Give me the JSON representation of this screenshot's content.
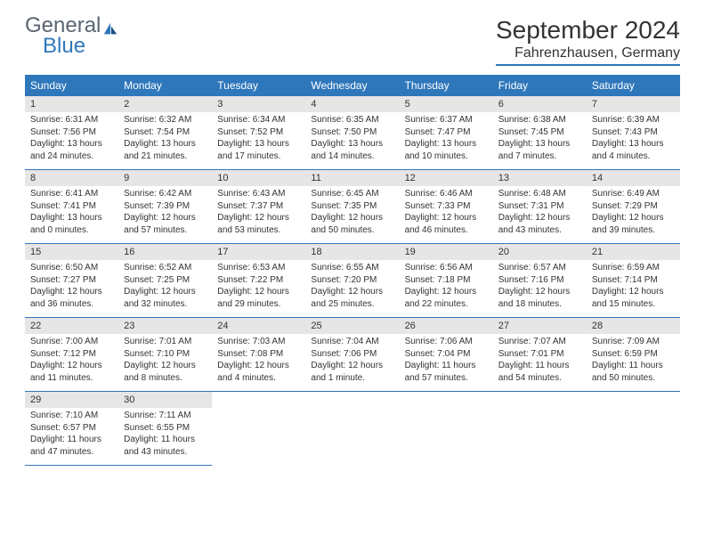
{
  "brand": {
    "line1": "General",
    "line2": "Blue"
  },
  "title": "September 2024",
  "location": "Fahrenzhausen, Germany",
  "colors": {
    "accent": "#2f77bb",
    "header_text": "#ffffff",
    "daynum_bg": "#e6e6e6",
    "text": "#333333",
    "logo_gray": "#5a6570"
  },
  "weekdays": [
    "Sunday",
    "Monday",
    "Tuesday",
    "Wednesday",
    "Thursday",
    "Friday",
    "Saturday"
  ],
  "days": [
    {
      "n": "1",
      "sunrise": "6:31 AM",
      "sunset": "7:56 PM",
      "daylight": "13 hours and 24 minutes."
    },
    {
      "n": "2",
      "sunrise": "6:32 AM",
      "sunset": "7:54 PM",
      "daylight": "13 hours and 21 minutes."
    },
    {
      "n": "3",
      "sunrise": "6:34 AM",
      "sunset": "7:52 PM",
      "daylight": "13 hours and 17 minutes."
    },
    {
      "n": "4",
      "sunrise": "6:35 AM",
      "sunset": "7:50 PM",
      "daylight": "13 hours and 14 minutes."
    },
    {
      "n": "5",
      "sunrise": "6:37 AM",
      "sunset": "7:47 PM",
      "daylight": "13 hours and 10 minutes."
    },
    {
      "n": "6",
      "sunrise": "6:38 AM",
      "sunset": "7:45 PM",
      "daylight": "13 hours and 7 minutes."
    },
    {
      "n": "7",
      "sunrise": "6:39 AM",
      "sunset": "7:43 PM",
      "daylight": "13 hours and 4 minutes."
    },
    {
      "n": "8",
      "sunrise": "6:41 AM",
      "sunset": "7:41 PM",
      "daylight": "13 hours and 0 minutes."
    },
    {
      "n": "9",
      "sunrise": "6:42 AM",
      "sunset": "7:39 PM",
      "daylight": "12 hours and 57 minutes."
    },
    {
      "n": "10",
      "sunrise": "6:43 AM",
      "sunset": "7:37 PM",
      "daylight": "12 hours and 53 minutes."
    },
    {
      "n": "11",
      "sunrise": "6:45 AM",
      "sunset": "7:35 PM",
      "daylight": "12 hours and 50 minutes."
    },
    {
      "n": "12",
      "sunrise": "6:46 AM",
      "sunset": "7:33 PM",
      "daylight": "12 hours and 46 minutes."
    },
    {
      "n": "13",
      "sunrise": "6:48 AM",
      "sunset": "7:31 PM",
      "daylight": "12 hours and 43 minutes."
    },
    {
      "n": "14",
      "sunrise": "6:49 AM",
      "sunset": "7:29 PM",
      "daylight": "12 hours and 39 minutes."
    },
    {
      "n": "15",
      "sunrise": "6:50 AM",
      "sunset": "7:27 PM",
      "daylight": "12 hours and 36 minutes."
    },
    {
      "n": "16",
      "sunrise": "6:52 AM",
      "sunset": "7:25 PM",
      "daylight": "12 hours and 32 minutes."
    },
    {
      "n": "17",
      "sunrise": "6:53 AM",
      "sunset": "7:22 PM",
      "daylight": "12 hours and 29 minutes."
    },
    {
      "n": "18",
      "sunrise": "6:55 AM",
      "sunset": "7:20 PM",
      "daylight": "12 hours and 25 minutes."
    },
    {
      "n": "19",
      "sunrise": "6:56 AM",
      "sunset": "7:18 PM",
      "daylight": "12 hours and 22 minutes."
    },
    {
      "n": "20",
      "sunrise": "6:57 AM",
      "sunset": "7:16 PM",
      "daylight": "12 hours and 18 minutes."
    },
    {
      "n": "21",
      "sunrise": "6:59 AM",
      "sunset": "7:14 PM",
      "daylight": "12 hours and 15 minutes."
    },
    {
      "n": "22",
      "sunrise": "7:00 AM",
      "sunset": "7:12 PM",
      "daylight": "12 hours and 11 minutes."
    },
    {
      "n": "23",
      "sunrise": "7:01 AM",
      "sunset": "7:10 PM",
      "daylight": "12 hours and 8 minutes."
    },
    {
      "n": "24",
      "sunrise": "7:03 AM",
      "sunset": "7:08 PM",
      "daylight": "12 hours and 4 minutes."
    },
    {
      "n": "25",
      "sunrise": "7:04 AM",
      "sunset": "7:06 PM",
      "daylight": "12 hours and 1 minute."
    },
    {
      "n": "26",
      "sunrise": "7:06 AM",
      "sunset": "7:04 PM",
      "daylight": "11 hours and 57 minutes."
    },
    {
      "n": "27",
      "sunrise": "7:07 AM",
      "sunset": "7:01 PM",
      "daylight": "11 hours and 54 minutes."
    },
    {
      "n": "28",
      "sunrise": "7:09 AM",
      "sunset": "6:59 PM",
      "daylight": "11 hours and 50 minutes."
    },
    {
      "n": "29",
      "sunrise": "7:10 AM",
      "sunset": "6:57 PM",
      "daylight": "11 hours and 47 minutes."
    },
    {
      "n": "30",
      "sunrise": "7:11 AM",
      "sunset": "6:55 PM",
      "daylight": "11 hours and 43 minutes."
    }
  ],
  "labels": {
    "sunrise": "Sunrise:",
    "sunset": "Sunset:",
    "daylight": "Daylight:"
  },
  "layout": {
    "start_weekday": 0,
    "cols": 7
  }
}
